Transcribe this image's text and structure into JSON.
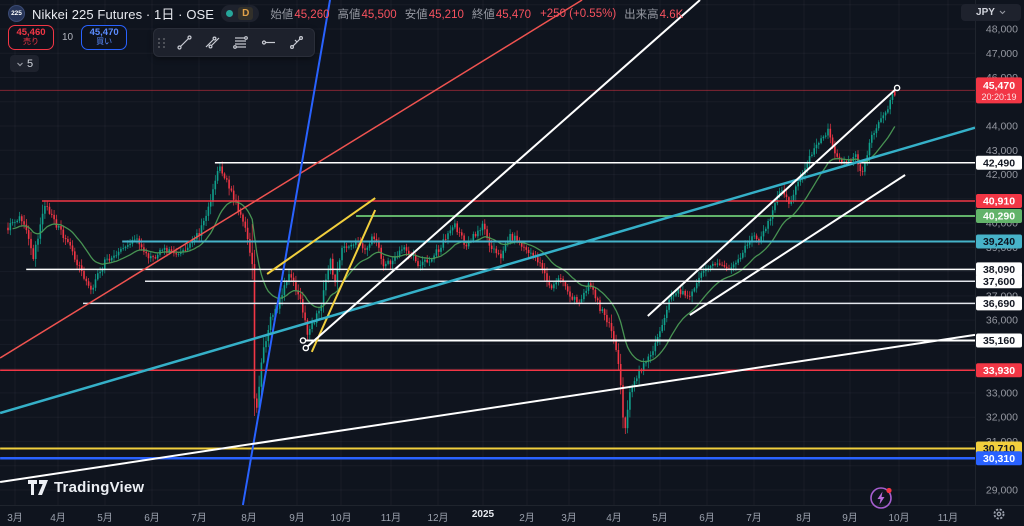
{
  "header": {
    "symbol_badge": "225",
    "title_full": "Nikkei 225 Futures · 1日 · OSE",
    "interval_badge": "D",
    "ohlc": {
      "open_label": "始値",
      "open": "45,260",
      "high_label": "高値",
      "high": "45,500",
      "low_label": "安値",
      "low": "45,210",
      "close_label": "終値",
      "close": "45,470",
      "change": "+250 (+0.55%)",
      "volume_label": "出来高",
      "volume": "4.6K"
    }
  },
  "trade_panel": {
    "sell_price": "45,460",
    "sell_label": "売り",
    "spread": "10",
    "buy_price": "45,470",
    "buy_label": "買い",
    "qty": "5"
  },
  "toolbar": {
    "icons": [
      "trend-line",
      "extended-line",
      "horizontal-lines",
      "horizontal-ray",
      "cross-line"
    ]
  },
  "price_axis": {
    "currency_button": "JPY",
    "visible_ticks": [
      48000,
      47000,
      46000,
      44000,
      43000,
      42000,
      40000,
      39000,
      37000,
      36000,
      33000,
      32000,
      31000,
      29000
    ],
    "labels": [
      {
        "price": 42490,
        "text": "42,490",
        "bg": "#ffffff",
        "fg": "#131722"
      },
      {
        "price": 40910,
        "text": "40,910",
        "bg": "#f23645",
        "fg": "#ffffff"
      },
      {
        "price": 40290,
        "text": "40,290",
        "bg": "#62b36a",
        "fg": "#ffffff"
      },
      {
        "price": 39240,
        "text": "39,240",
        "bg": "#47b3c9",
        "fg": "#0c1320"
      },
      {
        "price": 38090,
        "text": "38,090",
        "bg": "#ffffff",
        "fg": "#131722"
      },
      {
        "price": 37600,
        "text": "37,600",
        "bg": "#ffffff",
        "fg": "#131722"
      },
      {
        "price": 36690,
        "text": "36,690",
        "bg": "#ffffff",
        "fg": "#131722"
      },
      {
        "price": 35160,
        "text": "35,160",
        "bg": "#ffffff",
        "fg": "#131722"
      },
      {
        "price": 33930,
        "text": "33,930",
        "bg": "#f23645",
        "fg": "#ffffff"
      },
      {
        "price": 30710,
        "text": "30,710",
        "bg": "#f2cf3d",
        "fg": "#131722"
      },
      {
        "price": 30310,
        "text": "30,310",
        "bg": "#2962ff",
        "fg": "#ffffff"
      }
    ],
    "current_label": {
      "price": 45470,
      "text": "45,470",
      "countdown": "20:20:19",
      "bg": "#f23645",
      "fg": "#ffffff"
    }
  },
  "time_axis": {
    "labels": [
      {
        "text": "3月",
        "x": 15
      },
      {
        "text": "4月",
        "x": 58
      },
      {
        "text": "5月",
        "x": 105
      },
      {
        "text": "6月",
        "x": 152
      },
      {
        "text": "7月",
        "x": 199
      },
      {
        "text": "8月",
        "x": 249
      },
      {
        "text": "9月",
        "x": 297
      },
      {
        "text": "10月",
        "x": 341
      },
      {
        "text": "11月",
        "x": 391
      },
      {
        "text": "12月",
        "x": 438
      },
      {
        "text": "2025",
        "x": 483,
        "bold": true
      },
      {
        "text": "2月",
        "x": 527
      },
      {
        "text": "3月",
        "x": 569
      },
      {
        "text": "4月",
        "x": 614
      },
      {
        "text": "5月",
        "x": 660
      },
      {
        "text": "6月",
        "x": 707
      },
      {
        "text": "7月",
        "x": 754
      },
      {
        "text": "8月",
        "x": 804
      },
      {
        "text": "9月",
        "x": 850
      },
      {
        "text": "10月",
        "x": 899
      },
      {
        "text": "11月",
        "x": 948
      }
    ]
  },
  "watermark": "TradingView",
  "chart_data": {
    "type": "candlestick",
    "title": "Nikkei 225 Futures · 1日 · OSE",
    "currency": "JPY",
    "ylim": [
      28380,
      49195
    ],
    "grid": true,
    "current_ohlc": {
      "open": 45260,
      "high": 45500,
      "low": 45210,
      "close": 45470,
      "change_pts": 250,
      "change_pct": 0.55,
      "volume": "4.6K"
    },
    "last_price": 45470,
    "up_color": "#10a08c",
    "down_color": "#f23645",
    "ma": {
      "type": "EMA",
      "period": 20,
      "color": "#4b9a55"
    },
    "price_path_anchors": [
      [
        -0.15,
        39800
      ],
      [
        0.11,
        40300
      ],
      [
        0.25,
        39600
      ],
      [
        0.39,
        38600
      ],
      [
        0.64,
        40700
      ],
      [
        0.9,
        39900
      ],
      [
        1.2,
        38900
      ],
      [
        1.61,
        37200
      ],
      [
        1.93,
        38400
      ],
      [
        2.25,
        38900
      ],
      [
        2.58,
        39400
      ],
      [
        2.9,
        38500
      ],
      [
        3.22,
        38900
      ],
      [
        3.54,
        38700
      ],
      [
        3.97,
        39600
      ],
      [
        4.2,
        41000
      ],
      [
        4.36,
        42350
      ],
      [
        4.61,
        41500
      ],
      [
        4.94,
        39800
      ],
      [
        5.09,
        38200
      ],
      [
        5.15,
        31500
      ],
      [
        5.3,
        34500
      ],
      [
        5.47,
        36000
      ],
      [
        5.69,
        36800
      ],
      [
        5.9,
        38000
      ],
      [
        6.12,
        36800
      ],
      [
        6.29,
        35400
      ],
      [
        6.55,
        36500
      ],
      [
        6.76,
        38500
      ],
      [
        6.87,
        37500
      ],
      [
        7.0,
        38900
      ],
      [
        7.3,
        39200
      ],
      [
        7.51,
        38950
      ],
      [
        7.73,
        39500
      ],
      [
        7.9,
        38300
      ],
      [
        8.05,
        38400
      ],
      [
        8.37,
        39000
      ],
      [
        8.69,
        38200
      ],
      [
        9.01,
        38700
      ],
      [
        9.44,
        39900
      ],
      [
        9.66,
        39100
      ],
      [
        10.04,
        39900
      ],
      [
        10.19,
        39000
      ],
      [
        10.41,
        38600
      ],
      [
        10.62,
        39500
      ],
      [
        10.84,
        39200
      ],
      [
        11.05,
        38800
      ],
      [
        11.27,
        38300
      ],
      [
        11.48,
        37300
      ],
      [
        11.7,
        37800
      ],
      [
        11.91,
        37000
      ],
      [
        12.12,
        36800
      ],
      [
        12.34,
        37500
      ],
      [
        12.55,
        36500
      ],
      [
        12.77,
        35800
      ],
      [
        12.98,
        34000
      ],
      [
        13.07,
        31200
      ],
      [
        13.2,
        33000
      ],
      [
        13.41,
        33900
      ],
      [
        13.63,
        34500
      ],
      [
        13.84,
        35600
      ],
      [
        14.06,
        36900
      ],
      [
        14.27,
        37200
      ],
      [
        14.48,
        36900
      ],
      [
        14.7,
        37800
      ],
      [
        14.91,
        38200
      ],
      [
        15.13,
        38400
      ],
      [
        15.34,
        38000
      ],
      [
        15.67,
        39000
      ],
      [
        15.88,
        39500
      ],
      [
        15.99,
        39300
      ],
      [
        16.2,
        40200
      ],
      [
        16.42,
        41500
      ],
      [
        16.63,
        40800
      ],
      [
        16.84,
        41800
      ],
      [
        17.06,
        42800
      ],
      [
        17.27,
        43400
      ],
      [
        17.44,
        43800
      ],
      [
        17.6,
        42800
      ],
      [
        17.81,
        42400
      ],
      [
        18.03,
        42800
      ],
      [
        18.18,
        42000
      ],
      [
        18.35,
        43400
      ],
      [
        18.52,
        44000
      ],
      [
        18.67,
        44500
      ],
      [
        18.78,
        45000
      ],
      [
        18.88,
        45470
      ]
    ],
    "horizontal_levels": [
      {
        "price": 42490,
        "from_month": 4.29,
        "color": "#ffffff",
        "width": 1.5
      },
      {
        "price": 40910,
        "from_month": 0.58,
        "color": "#f23645",
        "width": 1.5
      },
      {
        "price": 40290,
        "from_month": 7.32,
        "color": "#62b36a",
        "width": 2
      },
      {
        "price": 39240,
        "from_month": 2.3,
        "color": "#45b3c9",
        "width": 2
      },
      {
        "price": 38090,
        "from_month": 0.24,
        "color": "#ffffff",
        "width": 1.5
      },
      {
        "price": 37600,
        "from_month": 2.79,
        "color": "#e3e6ec",
        "width": 1.5
      },
      {
        "price": 36690,
        "from_month": 1.46,
        "color": "#e3e6ec",
        "width": 1.5
      },
      {
        "price": 35160,
        "from_month": 6.18,
        "color": "#ffffff",
        "width": 2,
        "handle": true
      },
      {
        "price": 33930,
        "from_month": -0.32,
        "color": "#f23645",
        "width": 1.5
      },
      {
        "price": 30710,
        "from_month": -0.32,
        "color": "#f2cf3d",
        "width": 2
      },
      {
        "price": 30310,
        "from_month": -0.32,
        "color": "#2962ff",
        "width": 2.5
      }
    ],
    "trend_lines": [
      {
        "name": "red-ascending",
        "from": [
          -0.32,
          34440
        ],
        "to": [
          12.17,
          49195
        ],
        "color": "#ef5350",
        "width": 1.5
      },
      {
        "name": "blue-steep",
        "from": [
          4.89,
          28380
        ],
        "to": [
          6.76,
          49195
        ],
        "color": "#2962ff",
        "width": 2
      },
      {
        "name": "yellow-wedge-upper",
        "from": [
          5.41,
          37900
        ],
        "to": [
          7.73,
          41030
        ],
        "color": "#f2cf3d",
        "width": 2
      },
      {
        "name": "yellow-wedge-lower",
        "from": [
          6.37,
          34690
        ],
        "to": [
          7.73,
          40540
        ],
        "color": "#f2cf3d",
        "width": 2
      },
      {
        "name": "cyan-long-support",
        "from": [
          -0.32,
          32170
        ],
        "to": [
          20.6,
          43930
        ],
        "color": "#35b0c8",
        "width": 2.5
      },
      {
        "name": "white-long-support",
        "from": [
          -0.32,
          29330
        ],
        "to": [
          20.6,
          35390
        ],
        "color": "#ffffff",
        "width": 2
      },
      {
        "name": "white-steep-2024",
        "from": [
          6.24,
          34850
        ],
        "to": [
          14.7,
          49195
        ],
        "color": "#ffffff",
        "width": 2,
        "start_handle": true
      },
      {
        "name": "white-upper-2025",
        "from": [
          13.58,
          36170
        ],
        "to": [
          18.93,
          45570
        ],
        "color": "#ffffff",
        "width": 2,
        "end_handle": true
      },
      {
        "name": "white-lower-2025",
        "from": [
          14.48,
          36210
        ],
        "to": [
          19.1,
          41980
        ],
        "color": "#ffffff",
        "width": 2
      }
    ]
  }
}
